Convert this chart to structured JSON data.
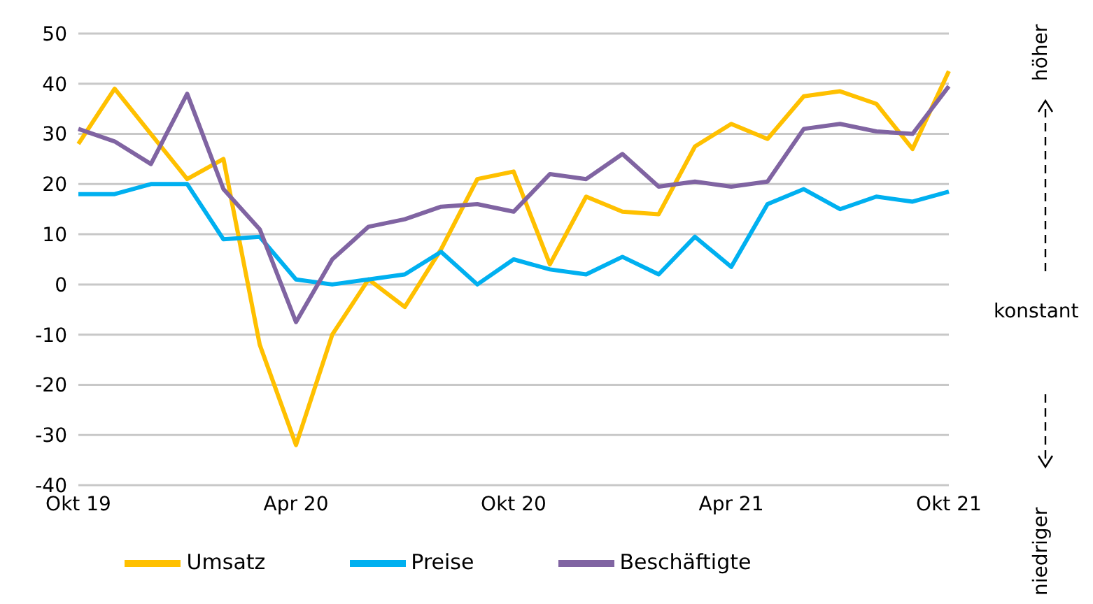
{
  "chart_data": {
    "type": "line",
    "categories": [
      "Okt 19",
      null,
      null,
      null,
      null,
      null,
      "Apr 20",
      null,
      null,
      null,
      null,
      null,
      "Okt 20",
      null,
      null,
      null,
      null,
      null,
      "Apr 21",
      null,
      null,
      null,
      null,
      null,
      "Okt 21"
    ],
    "series": [
      {
        "name": "Umsatz",
        "color": "#ffc000",
        "values": [
          28,
          39,
          30,
          21,
          25,
          -12,
          -32,
          -10,
          1,
          -4.5,
          7,
          21,
          22.5,
          4,
          17.5,
          14.5,
          14,
          27.5,
          32,
          29,
          37.5,
          38.5,
          36,
          27,
          42.5
        ]
      },
      {
        "name": "Preise",
        "color": "#00b0f0",
        "values": [
          18,
          18,
          20,
          20,
          9,
          9.5,
          1,
          0,
          1,
          2,
          6.5,
          0,
          5,
          3,
          2,
          5.5,
          2,
          9.5,
          3.5,
          16,
          19,
          15,
          17.5,
          16.5,
          18.5
        ]
      },
      {
        "name": "Beschäftigte",
        "color": "#8064a2",
        "values": [
          31,
          28.5,
          24,
          38,
          19,
          11,
          -7.5,
          5,
          11.5,
          13,
          15.5,
          16,
          14.5,
          22,
          21,
          26,
          19.5,
          20.5,
          19.5,
          20.5,
          31,
          32,
          30.5,
          30,
          39.5
        ]
      }
    ],
    "ylim": [
      -40,
      50
    ],
    "yticks": [
      -40,
      -30,
      -20,
      -10,
      0,
      10,
      20,
      30,
      40,
      50
    ],
    "grid": "y",
    "legend": "bottom",
    "marker": "none",
    "line_style": "solid",
    "annotations": [
      "höher",
      "konstant",
      "niedriger"
    ]
  }
}
